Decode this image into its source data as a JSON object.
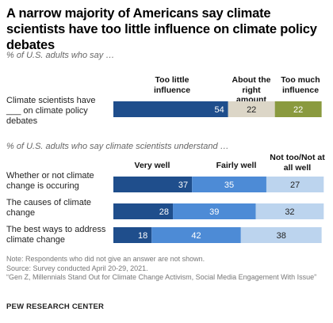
{
  "title": "A narrow majority of Americans say climate scientists have too little influence on climate policy debates",
  "chart_data": [
    {
      "type": "bar",
      "orientation": "horizontal-stacked",
      "subtitle": "% of U.S. adults who say …",
      "categories": [
        "Climate scientists have ___ on climate policy debates"
      ],
      "series": [
        {
          "name": "Too little influence",
          "values": [
            54
          ],
          "color": "#1f4e8c"
        },
        {
          "name": "About the right amount",
          "values": [
            22
          ],
          "color": "#dcd6c7"
        },
        {
          "name": "Too much influence",
          "values": [
            22
          ],
          "color": "#8a9a3f"
        }
      ]
    },
    {
      "type": "bar",
      "orientation": "horizontal-stacked",
      "subtitle": "% of U.S. adults who say climate scientists understand …",
      "categories": [
        "Whether or not climate change is occuring",
        "The causes of climate change",
        "The best ways to address climate change"
      ],
      "series": [
        {
          "name": "Very well",
          "values": [
            37,
            28,
            18
          ],
          "color": "#1f4e8c"
        },
        {
          "name": "Fairly well",
          "values": [
            35,
            39,
            42
          ],
          "color": "#4d8bd6"
        },
        {
          "name": "Not too/Not at all well",
          "values": [
            27,
            32,
            38
          ],
          "color": "#bcd4ee"
        }
      ]
    }
  ],
  "notes": {
    "line1": "Note: Respondents who did not give an answer are not shown.",
    "line2": "Source: Survey conducted April 20-29, 2021.",
    "line3": "“Gen Z, Millennials Stand Out for Climate Change Activism, Social Media Engagement With Issue”"
  },
  "brand": "PEW RESEARCH CENTER"
}
